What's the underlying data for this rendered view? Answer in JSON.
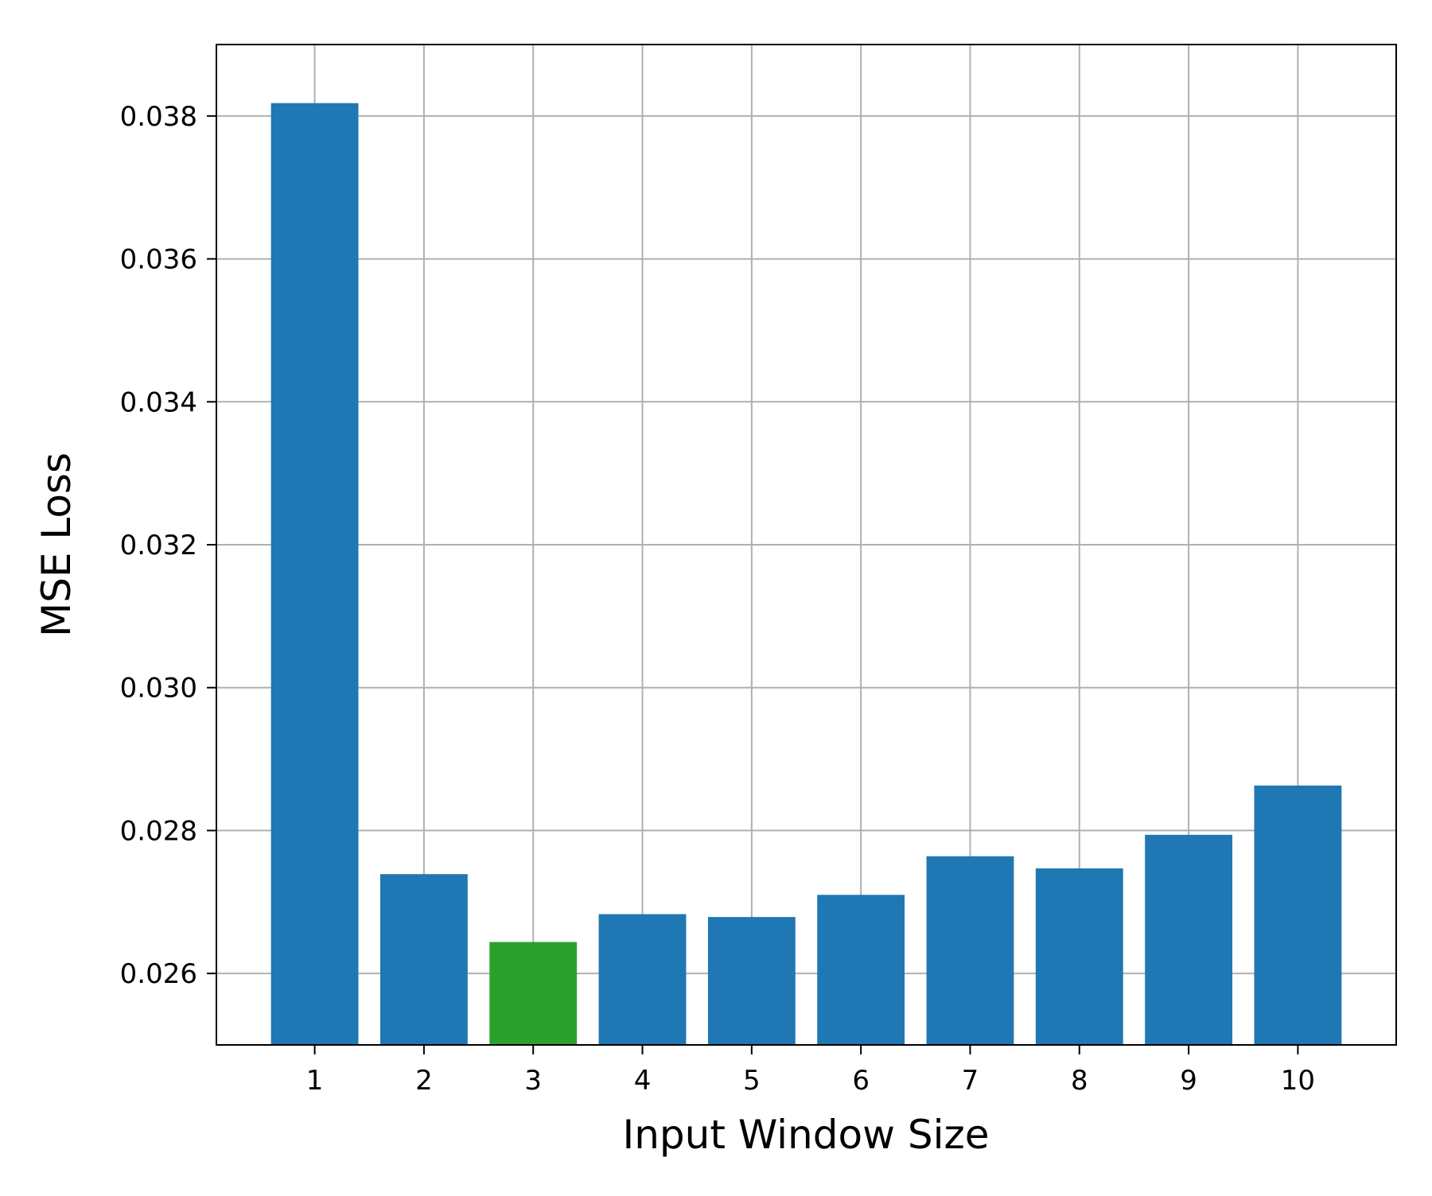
{
  "chart_data": {
    "type": "bar",
    "title": "",
    "xlabel": "Input Window Size",
    "ylabel": "MSE Loss",
    "categories": [
      "1",
      "2",
      "3",
      "4",
      "5",
      "6",
      "7",
      "8",
      "9",
      "10"
    ],
    "values": [
      0.03818,
      0.02739,
      0.02644,
      0.02683,
      0.02679,
      0.0271,
      0.02764,
      0.02747,
      0.02794,
      0.02863
    ],
    "bar_colors": [
      "#1f77b4",
      "#1f77b4",
      "#2ca02c",
      "#1f77b4",
      "#1f77b4",
      "#1f77b4",
      "#1f77b4",
      "#1f77b4",
      "#1f77b4",
      "#1f77b4"
    ],
    "ylim": [
      0.025,
      0.039
    ],
    "yticks": [
      0.026,
      0.028,
      0.03,
      0.032,
      0.034,
      0.036,
      0.038
    ],
    "ytick_labels": [
      "0.026",
      "0.028",
      "0.030",
      "0.032",
      "0.034",
      "0.036",
      "0.038"
    ],
    "grid": true,
    "grid_color": "#b0b0b0",
    "legend": "none"
  }
}
